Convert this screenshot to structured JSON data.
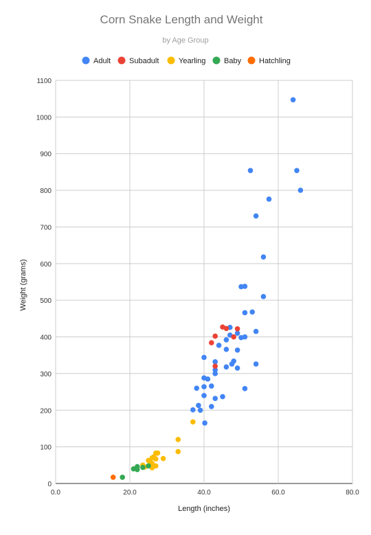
{
  "chart_data": {
    "type": "scatter",
    "title": "Corn Snake Length and Weight",
    "subtitle": "by Age Group",
    "xlabel": "Length (inches)",
    "ylabel": "Weight (grams)",
    "xlim": [
      0,
      80
    ],
    "ylim": [
      0,
      1100
    ],
    "x_ticks": [
      "0.0",
      "20.0",
      "40.0",
      "60.0",
      "80.0"
    ],
    "y_ticks": [
      "0",
      "100",
      "200",
      "300",
      "400",
      "500",
      "600",
      "700",
      "800",
      "900",
      "1000",
      "1100"
    ],
    "grid": true,
    "legend_position": "top",
    "series": [
      {
        "name": "Adult",
        "color": "#4285f4",
        "points": [
          [
            64,
            1047
          ],
          [
            52.5,
            854
          ],
          [
            65,
            854
          ],
          [
            66,
            800
          ],
          [
            57.5,
            776
          ],
          [
            54,
            730
          ],
          [
            56,
            618
          ],
          [
            50,
            537
          ],
          [
            51,
            538
          ],
          [
            56,
            510
          ],
          [
            51,
            466
          ],
          [
            53,
            468
          ],
          [
            47,
            426
          ],
          [
            47,
            405
          ],
          [
            49,
            410
          ],
          [
            50,
            398
          ],
          [
            51,
            400
          ],
          [
            54,
            415
          ],
          [
            44,
            377
          ],
          [
            46,
            392
          ],
          [
            46,
            366
          ],
          [
            49,
            364
          ],
          [
            40,
            344
          ],
          [
            43,
            332
          ],
          [
            48,
            334
          ],
          [
            47.5,
            326
          ],
          [
            54,
            326
          ],
          [
            43,
            310
          ],
          [
            43,
            300
          ],
          [
            46,
            318
          ],
          [
            49,
            315
          ],
          [
            40,
            288
          ],
          [
            41,
            285
          ],
          [
            40,
            264
          ],
          [
            42,
            266
          ],
          [
            38,
            260
          ],
          [
            51,
            259
          ],
          [
            40,
            240
          ],
          [
            45,
            237
          ],
          [
            43,
            232
          ],
          [
            38.5,
            213
          ],
          [
            42,
            210
          ],
          [
            39,
            200
          ],
          [
            37,
            201
          ],
          [
            40.2,
            165
          ]
        ]
      },
      {
        "name": "Subadult",
        "color": "#ea4335",
        "points": [
          [
            45,
            427
          ],
          [
            46,
            423
          ],
          [
            49,
            422
          ],
          [
            43,
            402
          ],
          [
            48,
            400
          ],
          [
            42,
            384
          ],
          [
            43,
            320
          ]
        ]
      },
      {
        "name": "Yearling",
        "color": "#fbbc04",
        "points": [
          [
            33,
            120
          ],
          [
            33,
            87
          ],
          [
            37,
            168
          ],
          [
            27,
            83
          ],
          [
            27.5,
            83
          ],
          [
            26.5,
            73
          ],
          [
            26,
            70
          ],
          [
            27,
            67
          ],
          [
            29,
            68
          ],
          [
            25,
            63
          ],
          [
            25.5,
            58
          ],
          [
            26,
            55
          ],
          [
            27,
            48
          ],
          [
            23.5,
            50
          ],
          [
            24,
            45
          ],
          [
            26,
            43
          ]
        ]
      },
      {
        "name": "Baby",
        "color": "#34a853",
        "points": [
          [
            25,
            48
          ],
          [
            22,
            46
          ],
          [
            23.5,
            44
          ],
          [
            21,
            40
          ],
          [
            22,
            38
          ],
          [
            18,
            17
          ]
        ]
      },
      {
        "name": "Hatchling",
        "color": "#ff6d01",
        "points": [
          [
            15.5,
            17
          ]
        ]
      }
    ]
  }
}
